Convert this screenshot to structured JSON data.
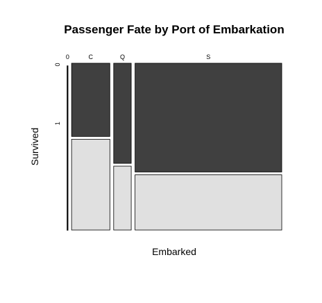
{
  "chart_data": {
    "type": "mosaic",
    "title": "Passenger Fate by Port of Embarkation",
    "x_label": "Embarked",
    "y_label": "Survived",
    "categories": [
      "0",
      "C",
      "Q",
      "S"
    ],
    "series": [
      {
        "name": "0",
        "color": "#404040",
        "values": [
          0,
          75,
          47,
          427
        ]
      },
      {
        "name": "1",
        "color": "#e0e0e0",
        "values": [
          2,
          93,
          30,
          217
        ]
      }
    ]
  }
}
